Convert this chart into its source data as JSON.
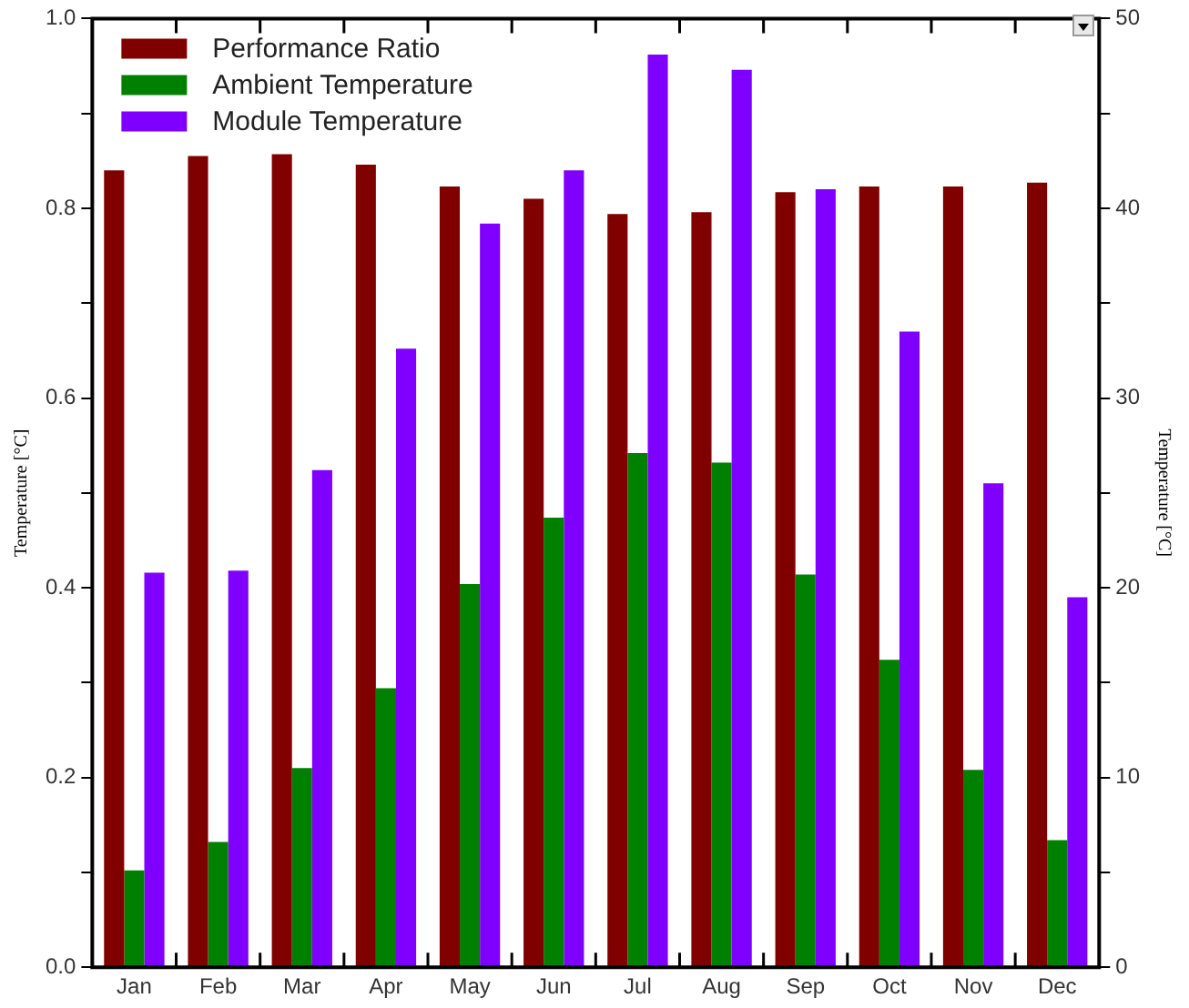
{
  "chart_data": {
    "type": "bar",
    "ylabel": "Temperature [°C]",
    "y2label": "Temperature [°C]",
    "categories": [
      "Jan",
      "Feb",
      "Mar",
      "Apr",
      "May",
      "Jun",
      "Jul",
      "Aug",
      "Sep",
      "Oct",
      "Nov",
      "Dec"
    ],
    "series": [
      {
        "name": "Performance Ratio",
        "color": "#800000",
        "values": [
          0.84,
          0.855,
          0.857,
          0.846,
          0.823,
          0.81,
          0.794,
          0.796,
          0.817,
          0.823,
          0.823,
          0.827
        ]
      },
      {
        "name": "Ambient Temperature",
        "color": "#008000",
        "axis": "y2",
        "values": [
          5.1,
          6.6,
          10.5,
          14.7,
          20.2,
          23.7,
          27.1,
          26.6,
          20.7,
          16.2,
          10.4,
          6.7
        ]
      },
      {
        "name": "Module Temperature",
        "color": "#8000ff",
        "axis": "y2",
        "values": [
          20.8,
          20.9,
          26.2,
          32.6,
          39.2,
          42.0,
          48.1,
          47.3,
          41.0,
          33.5,
          25.5,
          19.5
        ]
      }
    ],
    "ylim": [
      0,
      1
    ],
    "yticks": [
      {
        "value": 0,
        "label": "0.0"
      },
      {
        "value": 0.1,
        "label": null
      },
      {
        "value": 0.2,
        "label": "0.2"
      },
      {
        "value": 0.3,
        "label": null
      },
      {
        "value": 0.4,
        "label": "0.4"
      },
      {
        "value": 0.5,
        "label": null
      },
      {
        "value": 0.6,
        "label": "0.6"
      },
      {
        "value": 0.7,
        "label": null
      },
      {
        "value": 0.8,
        "label": "0.8"
      },
      {
        "value": 0.9,
        "label": null
      },
      {
        "value": 1,
        "label": "1.0"
      }
    ],
    "y2lim": [
      0,
      50
    ],
    "y2ticks": [
      0,
      {
        "value": 5,
        "label": null
      },
      10,
      {
        "value": 15,
        "label": null
      },
      20,
      {
        "value": 25,
        "label": null
      },
      30,
      {
        "value": 35,
        "label": null
      },
      40,
      {
        "value": 45,
        "label": null
      },
      50
    ],
    "grid": false,
    "legend": "top left"
  }
}
